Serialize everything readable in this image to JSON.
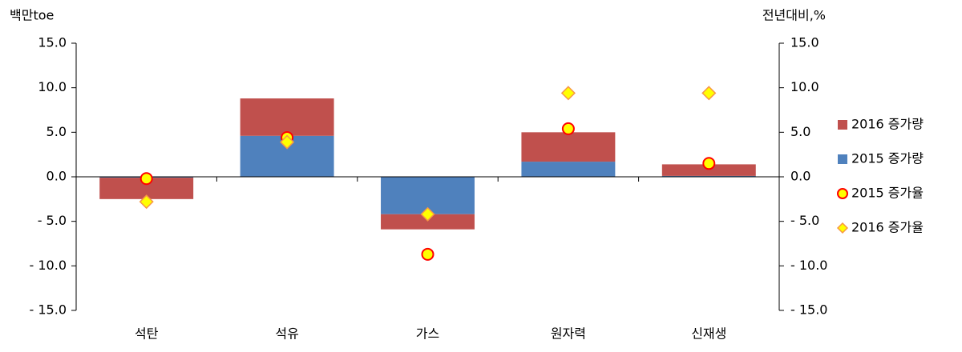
{
  "chart_data": {
    "type": "bar",
    "stacked": true,
    "ylabel": "백만toe",
    "y2label": "전년대비,%",
    "categories": [
      "석탄",
      "석유",
      "가스",
      "원자력",
      "신재생"
    ],
    "series": [
      {
        "name": "2015 증가량",
        "type": "bar",
        "color": "#4f81bd",
        "values": [
          -0.1,
          4.6,
          -4.2,
          1.7,
          0.1
        ]
      },
      {
        "name": "2016 증가량",
        "type": "bar",
        "color": "#c0504d",
        "values": [
          -2.4,
          4.2,
          -1.7,
          3.3,
          1.3
        ]
      },
      {
        "name": "2015 증가율",
        "type": "scatter",
        "axis": "y2",
        "marker": "circle",
        "color": "#ffff00",
        "edgecolor": "#ff0000",
        "values": [
          -0.2,
          4.4,
          -8.7,
          5.4,
          1.5
        ]
      },
      {
        "name": "2016 증가율",
        "type": "scatter",
        "axis": "y2",
        "marker": "diamond",
        "color": "#ffff00",
        "edgecolor": "#f79646",
        "values": [
          -2.8,
          3.9,
          -4.2,
          9.4,
          9.4
        ]
      }
    ],
    "legend_order": [
      1,
      0,
      2,
      3
    ],
    "ylim": [
      -15,
      15
    ],
    "yticks": [
      {
        "value": 15,
        "label": "15.0"
      },
      {
        "value": 10,
        "label": "10.0"
      },
      {
        "value": 5,
        "label": "5.0"
      },
      {
        "value": 0,
        "label": "0.0"
      },
      {
        "value": -5,
        "label": "- 5.0"
      },
      {
        "value": -10,
        "label": "- 10.0"
      },
      {
        "value": -15,
        "label": "- 15.0"
      }
    ],
    "y2lim": [
      -15,
      15
    ],
    "y2ticks": [
      {
        "value": 15,
        "label": "15.0"
      },
      {
        "value": 10,
        "label": "10.0"
      },
      {
        "value": 5,
        "label": "5.0"
      },
      {
        "value": 0,
        "label": "0.0"
      },
      {
        "value": -5,
        "label": "- 5.0"
      },
      {
        "value": -10,
        "label": "- 10.0"
      },
      {
        "value": -15,
        "label": "- 15.0"
      }
    ],
    "legend": "right"
  }
}
